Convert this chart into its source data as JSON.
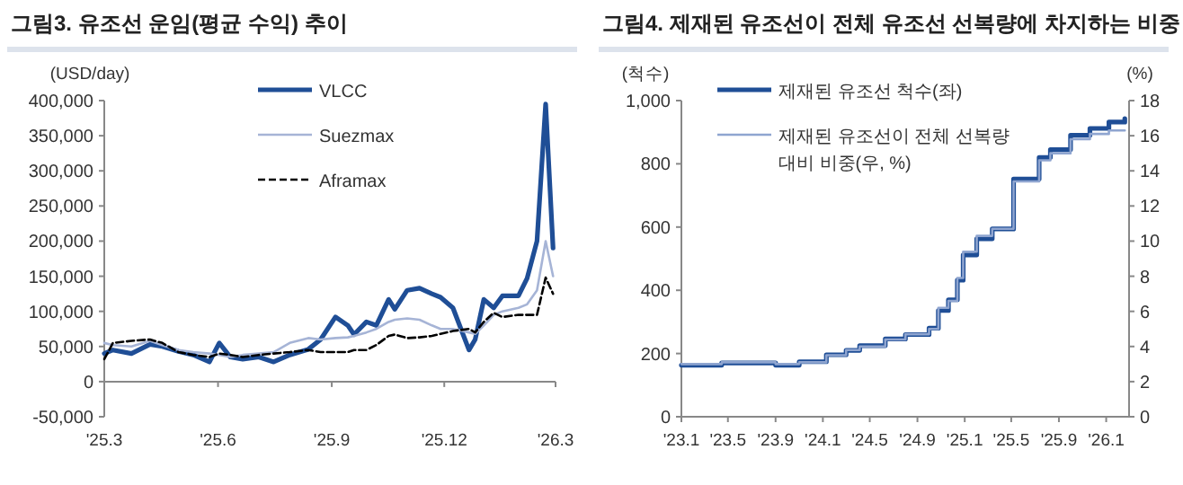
{
  "chart_data": [
    {
      "type": "line",
      "title": "그림3. 유조선 운임(평균 수익) 추이",
      "ylabel": "(USD/day)",
      "x": [
        "2025-03-01",
        "2025-03-08",
        "2025-03-23",
        "2025-04-07",
        "2025-04-17",
        "2025-04-30",
        "2025-05-12",
        "2025-05-25",
        "2025-06-02",
        "2025-06-11",
        "2025-06-21",
        "2025-07-04",
        "2025-07-16",
        "2025-07-29",
        "2025-08-13",
        "2025-08-23",
        "2025-09-04",
        "2025-09-14",
        "2025-09-19",
        "2025-09-29",
        "2025-10-07",
        "2025-10-17",
        "2025-10-22",
        "2025-11-01",
        "2025-11-11",
        "2025-11-21",
        "2025-11-28",
        "2025-12-08",
        "2025-12-21",
        "2025-12-26",
        "2026-01-02",
        "2026-01-10",
        "2026-01-17",
        "2026-01-30",
        "2026-02-06",
        "2026-02-14",
        "2026-02-21",
        "2026-02-27"
      ],
      "series": [
        {
          "name": "VLCC",
          "color": "#1f4e96",
          "values": [
            40000,
            45000,
            40000,
            53000,
            50000,
            43000,
            38000,
            28000,
            55000,
            35000,
            32000,
            35000,
            28000,
            38000,
            46000,
            60000,
            92000,
            80000,
            67000,
            85000,
            80000,
            117000,
            103000,
            130000,
            133000,
            125000,
            120000,
            105000,
            45000,
            60000,
            117000,
            105000,
            122000,
            122000,
            147000,
            200000,
            395000,
            190000
          ]
        },
        {
          "name": "Suezmax",
          "color": "#a6b4d6",
          "values": [
            55000,
            52000,
            50000,
            58000,
            52000,
            45000,
            42000,
            40000,
            38000,
            35000,
            38000,
            40000,
            42000,
            55000,
            62000,
            60000,
            62000,
            63000,
            65000,
            70000,
            75000,
            85000,
            88000,
            90000,
            88000,
            80000,
            75000,
            75000,
            70000,
            68000,
            80000,
            95000,
            100000,
            105000,
            110000,
            130000,
            200000,
            150000
          ]
        },
        {
          "name": "Aframax",
          "color": "#000000",
          "line_style": "dashed",
          "values": [
            32000,
            55000,
            58000,
            60000,
            55000,
            42000,
            38000,
            35000,
            40000,
            38000,
            35000,
            38000,
            40000,
            42000,
            45000,
            42000,
            42000,
            42000,
            45000,
            45000,
            52000,
            65000,
            67000,
            62000,
            63000,
            65000,
            68000,
            72000,
            75000,
            70000,
            85000,
            98000,
            92000,
            95000,
            95000,
            95000,
            148000,
            125000
          ]
        }
      ],
      "xlim": [
        "2025-03-01",
        "2026-03-01"
      ],
      "xticks": [
        {
          "value": "2025-03-01",
          "label": "'25.3"
        },
        {
          "value": "2025-06-01",
          "label": "'25.6"
        },
        {
          "value": "2025-09-01",
          "label": "'25.9"
        },
        {
          "value": "2025-12-01",
          "label": "'25.12"
        },
        {
          "value": "2026-03-01",
          "label": "'26.3"
        }
      ],
      "ylim": [
        -50000,
        400000
      ],
      "yticks": [
        {
          "value": -50000,
          "label": "-50,000"
        },
        {
          "value": 0,
          "label": "0"
        },
        {
          "value": 50000,
          "label": "50,000"
        },
        {
          "value": 100000,
          "label": "100,000"
        },
        {
          "value": 150000,
          "label": "150,000"
        },
        {
          "value": 200000,
          "label": "200,000"
        },
        {
          "value": 250000,
          "label": "250,000"
        },
        {
          "value": 300000,
          "label": "300,000"
        },
        {
          "value": 350000,
          "label": "350,000"
        },
        {
          "value": 400000,
          "label": "400,000"
        }
      ],
      "legend": "top"
    },
    {
      "type": "step",
      "title": "그림4. 제재된 유조선이 전체 유조선 선복량에 차지하는 비중",
      "ylabel": "(척수)",
      "y2label": "(%)",
      "x": [
        "2023-01-01",
        "2023-04-15",
        "2023-09-01",
        "2023-11-01",
        "2024-01-10",
        "2024-03-01",
        "2024-04-05",
        "2024-06-10",
        "2024-08-01",
        "2024-10-01",
        "2024-10-25",
        "2024-11-20",
        "2024-12-13",
        "2024-12-28",
        "2025-02-01",
        "2025-03-13",
        "2025-05-07",
        "2025-07-12",
        "2025-08-10",
        "2025-10-01",
        "2025-11-20",
        "2026-01-08",
        "2026-02-18"
      ],
      "series": [
        {
          "name": "제재된 유조선 척수(좌)",
          "color": "#1f4e96",
          "values": [
            163,
            170,
            163,
            174,
            196,
            210,
            225,
            246,
            260,
            280,
            336,
            370,
            432,
            512,
            563,
            594,
            752,
            820,
            845,
            890,
            912,
            932,
            943
          ]
        },
        {
          "name": "제재된 유조선이 전체 선복량 대비 비중(우, %)",
          "color": "#8fa5d0",
          "axis": "y2",
          "values": [
            3.0,
            3.1,
            3.0,
            3.1,
            3.5,
            3.8,
            4.0,
            4.4,
            4.7,
            5.0,
            6.2,
            6.6,
            7.9,
            9.4,
            10.3,
            10.7,
            13.4,
            14.6,
            15.0,
            15.8,
            16.1,
            16.3,
            16.3
          ]
        }
      ],
      "xlim": [
        "2023-01-01",
        "2026-03-01"
      ],
      "xticks": [
        {
          "value": "2023-01-01",
          "label": "'23.1"
        },
        {
          "value": "2023-05-01",
          "label": "'23.5"
        },
        {
          "value": "2023-09-01",
          "label": "'23.9"
        },
        {
          "value": "2024-01-01",
          "label": "'24.1"
        },
        {
          "value": "2024-05-01",
          "label": "'24.5"
        },
        {
          "value": "2024-09-01",
          "label": "'24.9"
        },
        {
          "value": "2025-01-01",
          "label": "'25.1"
        },
        {
          "value": "2025-05-01",
          "label": "'25.5"
        },
        {
          "value": "2025-09-01",
          "label": "'25.9"
        },
        {
          "value": "2026-01-01",
          "label": "'26.1"
        }
      ],
      "ylim": [
        0,
        1000
      ],
      "yticks": [
        0,
        200,
        400,
        600,
        800,
        {
          "value": 1000,
          "label": "1,000"
        }
      ],
      "y2lim": [
        0,
        18
      ],
      "y2ticks": [
        0,
        2,
        4,
        6,
        8,
        10,
        12,
        14,
        16,
        18
      ],
      "legend": "top left"
    }
  ]
}
